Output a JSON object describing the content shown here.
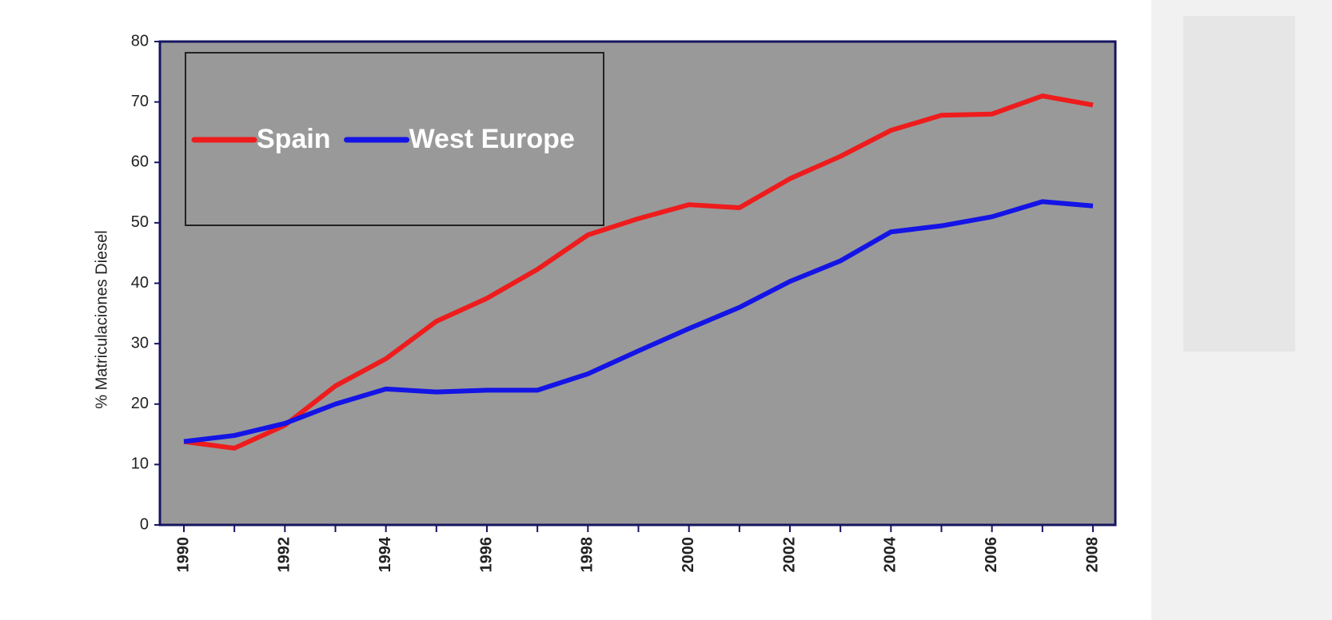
{
  "chart_data": {
    "type": "line",
    "y_label": "% Matriculaciones Diesel",
    "categories": [
      "1990",
      null,
      "1992",
      null,
      "1994",
      null,
      "1996",
      null,
      "1998",
      null,
      "2000",
      null,
      "2002",
      null,
      "2004",
      null,
      "2006",
      null,
      "2008"
    ],
    "series": [
      {
        "name": "Spain",
        "color": "#ee1c1c",
        "values": [
          13.8,
          12.7,
          16.5,
          23,
          27.5,
          33.7,
          37.5,
          42.3,
          48,
          50.7,
          53,
          52.5,
          57.3,
          61,
          65.3,
          67.8,
          68,
          71,
          69.5
        ]
      },
      {
        "name": "West Europe",
        "color": "#1414e6",
        "values": [
          13.8,
          14.8,
          16.8,
          20,
          22.5,
          22,
          22.3,
          22.3,
          25,
          28.8,
          32.5,
          36,
          40.3,
          43.7,
          48.5,
          49.5,
          51,
          53.5,
          52.8
        ]
      }
    ],
    "ylim": [
      0,
      80
    ],
    "yticks": [
      0,
      10,
      20,
      30,
      40,
      50,
      60,
      70,
      80
    ],
    "legend": "upper left"
  }
}
